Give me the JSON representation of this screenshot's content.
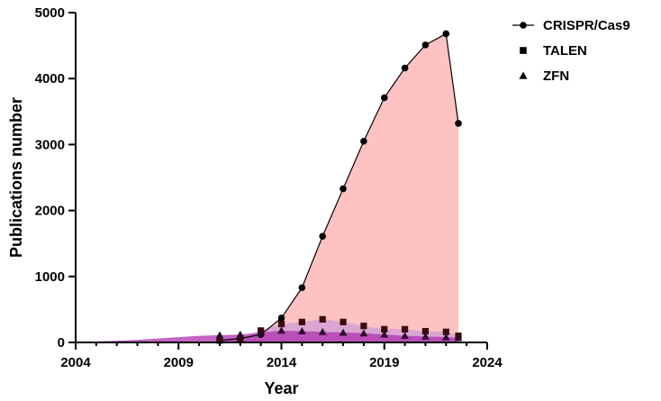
{
  "chart_data": {
    "type": "area",
    "title": "",
    "xlabel": "Year",
    "ylabel": "Publications number",
    "xlim": [
      2004,
      2024
    ],
    "ylim": [
      0,
      5000
    ],
    "xticks": [
      2004,
      2009,
      2014,
      2019,
      2024
    ],
    "yticks": [
      0,
      1000,
      2000,
      3000,
      4000,
      5000
    ],
    "grid": false,
    "legend_position": "top-right",
    "series": [
      {
        "name": "CRISPR/Cas9",
        "marker": "circle",
        "fill_color": "#ffc2c2",
        "marker_color": "#000000",
        "x": [
          2011,
          2012,
          2013,
          2014,
          2015,
          2016,
          2017,
          2018,
          2019,
          2020,
          2021,
          2022,
          2022.6
        ],
        "y": [
          30,
          60,
          120,
          370,
          830,
          1610,
          2330,
          3050,
          3710,
          4160,
          4510,
          4680,
          3320
        ]
      },
      {
        "name": "TALEN",
        "marker": "square",
        "fill_color": "#d4a1d4",
        "marker_color": "#3a0d0d",
        "x": [
          2011,
          2012,
          2013,
          2014,
          2015,
          2016,
          2017,
          2018,
          2019,
          2020,
          2021,
          2022,
          2022.6
        ],
        "y": [
          30,
          60,
          180,
          280,
          310,
          350,
          310,
          250,
          200,
          200,
          170,
          160,
          100
        ]
      },
      {
        "name": "ZFN",
        "marker": "triangle",
        "fill_color": "#b030b0",
        "marker_color": "#2a0a2a",
        "x": [
          2004,
          2005,
          2006,
          2007,
          2008,
          2009,
          2010,
          2011,
          2012,
          2013,
          2014,
          2015,
          2016,
          2017,
          2018,
          2019,
          2020,
          2021,
          2022,
          2022.6
        ],
        "y": [
          10,
          15,
          25,
          40,
          60,
          80,
          100,
          110,
          120,
          150,
          180,
          170,
          160,
          150,
          140,
          120,
          100,
          90,
          80,
          70
        ]
      }
    ]
  }
}
